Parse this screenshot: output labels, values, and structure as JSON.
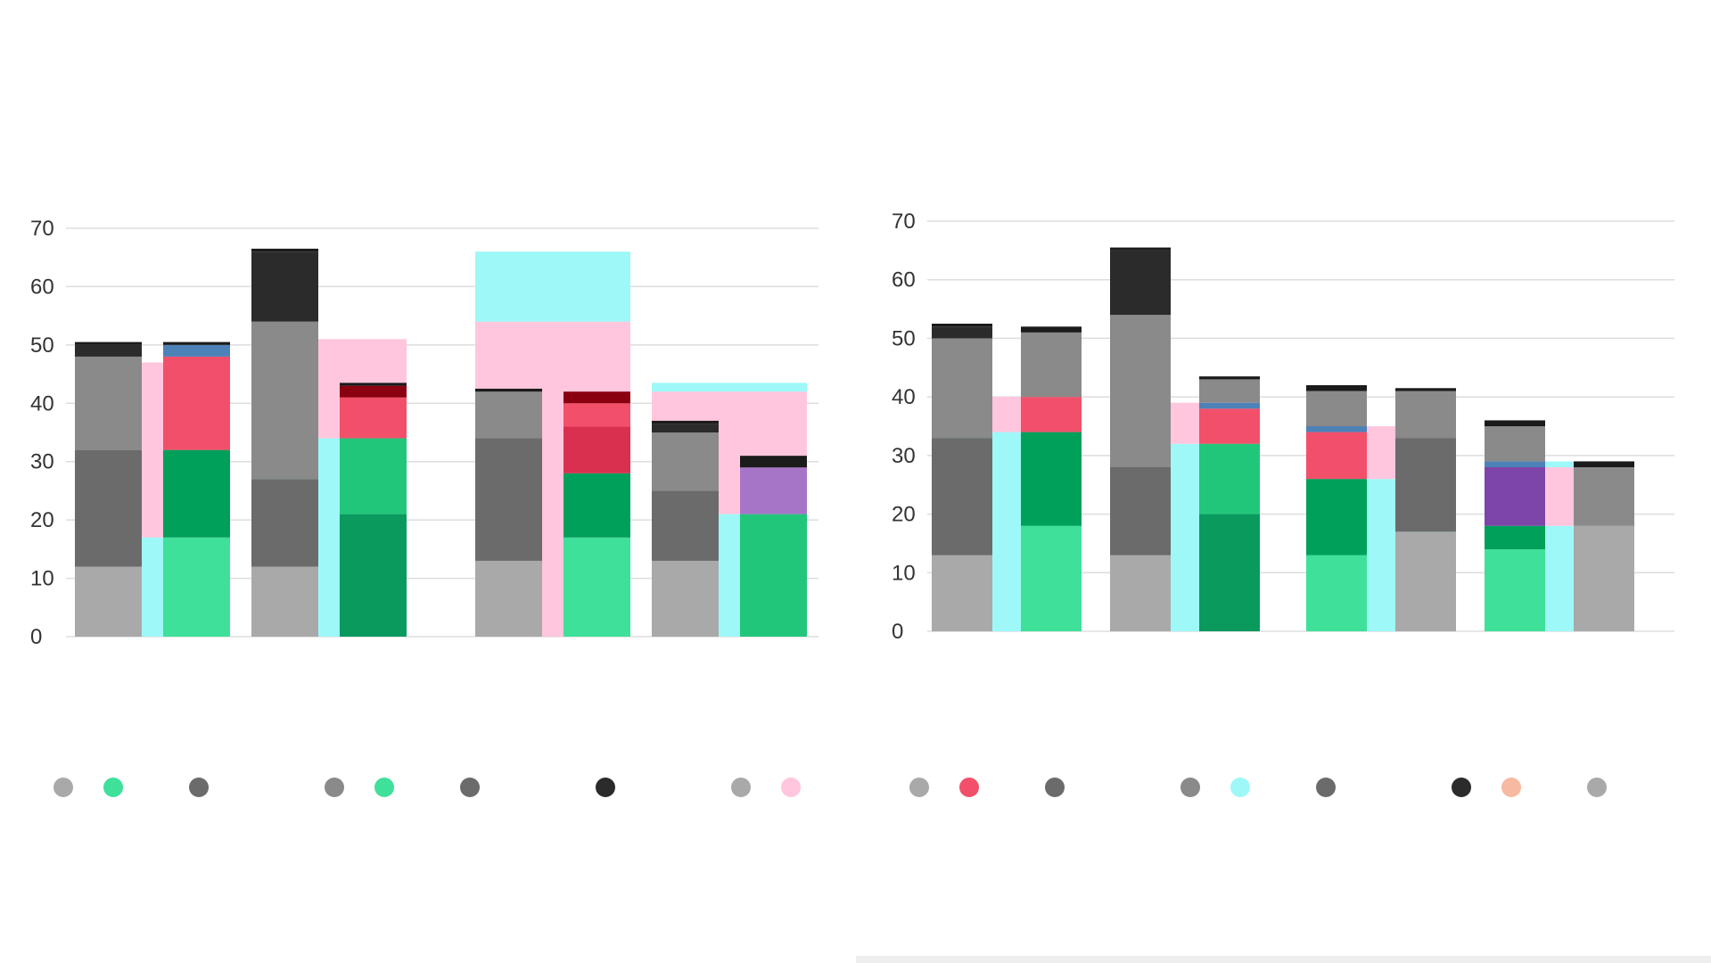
{
  "colors": {
    "c1": "#a9a9a9",
    "c2": "#6b6b6b",
    "c3": "#8a8a8a",
    "c4": "#2b2b2b",
    "green_light": "#3fe09a",
    "green": "#00a05a",
    "green_mid": "#22c67a",
    "green_dark": "#0a9a5e",
    "cyan": "#9ef8f8",
    "pink": "#ffc6de",
    "red": "#f2506a",
    "red_dark": "#d9304f",
    "darkred": "#8b0010",
    "purple": "#a775c8",
    "purple_dark": "#7e45a8",
    "blue": "#4d82b8",
    "nearblack": "#1b1b1b",
    "grid": "#dddddd"
  },
  "chart_data": [
    {
      "type": "bar",
      "stacked": true,
      "title": "",
      "ylim": [
        0,
        70
      ],
      "y_ticks": [
        0,
        10,
        20,
        30,
        40,
        50,
        60,
        70
      ],
      "y_tick_labels": [
        "0",
        "10",
        "20",
        "30",
        "40",
        "50",
        "60",
        "70"
      ],
      "grid": true,
      "groups": [
        {
          "label": "",
          "bars": [
            {
              "label": "",
              "segments": [
                {
                  "value": 12,
                  "color": "c1"
                },
                {
                  "value": 20,
                  "color": "c2"
                },
                {
                  "value": 16,
                  "color": "c3"
                },
                {
                  "value": 2,
                  "color": "c4"
                },
                {
                  "value": 0.5,
                  "color": "nearblack"
                }
              ]
            },
            {
              "label": "",
              "segments": [
                {
                  "value": 17,
                  "color": "green_light"
                },
                {
                  "value": 15,
                  "color": "green"
                },
                {
                  "value": 16,
                  "color": "red"
                },
                {
                  "value": 2,
                  "color": "blue"
                },
                {
                  "value": 0.5,
                  "color": "nearblack"
                }
              ]
            },
            {
              "label": "",
              "segments": [
                {
                  "value": 12,
                  "color": "c1"
                },
                {
                  "value": 15,
                  "color": "c2"
                },
                {
                  "value": 27,
                  "color": "c3"
                },
                {
                  "value": 12,
                  "color": "c4"
                },
                {
                  "value": 0.5,
                  "color": "nearblack"
                }
              ]
            },
            {
              "label": "",
              "segments": [
                {
                  "value": 21,
                  "color": "green_dark"
                },
                {
                  "value": 13,
                  "color": "green_mid"
                },
                {
                  "value": 7,
                  "color": "red"
                },
                {
                  "value": 2,
                  "color": "darkred"
                },
                {
                  "value": 0.5,
                  "color": "nearblack"
                }
              ]
            }
          ]
        },
        {
          "label": "",
          "bars": [
            {
              "label": "",
              "segments": [
                {
                  "value": 13,
                  "color": "c1"
                },
                {
                  "value": 21,
                  "color": "c2"
                },
                {
                  "value": 8,
                  "color": "c3"
                },
                {
                  "value": 0.5,
                  "color": "nearblack"
                }
              ]
            },
            {
              "label": "",
              "segments": [
                {
                  "value": 17,
                  "color": "green_light"
                },
                {
                  "value": 11,
                  "color": "green"
                },
                {
                  "value": 8,
                  "color": "red_dark"
                },
                {
                  "value": 4,
                  "color": "red"
                },
                {
                  "value": 2,
                  "color": "darkred"
                }
              ]
            },
            {
              "label": "",
              "segments": [
                {
                  "value": 13,
                  "color": "c1"
                },
                {
                  "value": 12,
                  "color": "c2"
                },
                {
                  "value": 10,
                  "color": "c3"
                },
                {
                  "value": 1.5,
                  "color": "c4"
                },
                {
                  "value": 0.5,
                  "color": "nearblack"
                }
              ]
            },
            {
              "label": "",
              "segments": [
                {
                  "value": 21,
                  "color": "green_mid"
                },
                {
                  "value": 8,
                  "color": "purple"
                },
                {
                  "value": 2,
                  "color": "nearblack"
                }
              ]
            }
          ]
        }
      ],
      "backgrounds": [
        {
          "group": 0,
          "span": [
            0,
            1
          ],
          "segments": [
            {
              "value": 17,
              "color": "cyan"
            },
            {
              "value": 30,
              "color": "pink"
            }
          ]
        },
        {
          "group": 0,
          "span": [
            2,
            3
          ],
          "segments": [
            {
              "value": 34,
              "color": "cyan"
            },
            {
              "value": 17,
              "color": "pink"
            }
          ]
        },
        {
          "group": 1,
          "span": [
            0,
            1
          ],
          "segments": [
            {
              "value": 54,
              "color": "pink"
            },
            {
              "value": 12,
              "color": "cyan"
            }
          ]
        },
        {
          "group": 1,
          "span": [
            2,
            3
          ],
          "segments": [
            {
              "value": 21,
              "color": "cyan"
            },
            {
              "value": 21,
              "color": "pink"
            },
            {
              "value": 1.5,
              "color": "cyan"
            }
          ]
        }
      ]
    },
    {
      "type": "bar",
      "stacked": true,
      "title": "",
      "ylim": [
        0,
        70
      ],
      "y_ticks": [
        0,
        10,
        20,
        30,
        40,
        50,
        60,
        70
      ],
      "y_tick_labels": [
        "0",
        "10",
        "20",
        "30",
        "40",
        "50",
        "60",
        "70"
      ],
      "grid": true,
      "groups": [
        {
          "label": "",
          "bars": [
            {
              "label": "",
              "segments": [
                {
                  "value": 13,
                  "color": "c1"
                },
                {
                  "value": 20,
                  "color": "c2"
                },
                {
                  "value": 17,
                  "color": "c3"
                },
                {
                  "value": 2,
                  "color": "c4"
                },
                {
                  "value": 0.5,
                  "color": "nearblack"
                }
              ]
            },
            {
              "label": "",
              "segments": [
                {
                  "value": 18,
                  "color": "green_light"
                },
                {
                  "value": 16,
                  "color": "green"
                },
                {
                  "value": 6,
                  "color": "red"
                },
                {
                  "value": 11,
                  "color": "c3"
                },
                {
                  "value": 1,
                  "color": "nearblack"
                }
              ]
            },
            {
              "label": "",
              "segments": [
                {
                  "value": 13,
                  "color": "c1"
                },
                {
                  "value": 15,
                  "color": "c2"
                },
                {
                  "value": 26,
                  "color": "c3"
                },
                {
                  "value": 11,
                  "color": "c4"
                },
                {
                  "value": 0.5,
                  "color": "nearblack"
                }
              ]
            },
            {
              "label": "",
              "segments": [
                {
                  "value": 20,
                  "color": "green_dark"
                },
                {
                  "value": 12,
                  "color": "green_mid"
                },
                {
                  "value": 6,
                  "color": "red"
                },
                {
                  "value": 1,
                  "color": "blue"
                },
                {
                  "value": 4,
                  "color": "c3"
                },
                {
                  "value": 0.5,
                  "color": "nearblack"
                }
              ]
            }
          ]
        },
        {
          "label": "",
          "bars": [
            {
              "label": "",
              "segments": [
                {
                  "value": 13,
                  "color": "green_light"
                },
                {
                  "value": 13,
                  "color": "green"
                },
                {
                  "value": 8,
                  "color": "red"
                },
                {
                  "value": 1,
                  "color": "blue"
                },
                {
                  "value": 6,
                  "color": "c3"
                },
                {
                  "value": 1,
                  "color": "nearblack"
                }
              ]
            },
            {
              "label": "",
              "segments": [
                {
                  "value": 17,
                  "color": "c1"
                },
                {
                  "value": 16,
                  "color": "c2"
                },
                {
                  "value": 8,
                  "color": "c3"
                },
                {
                  "value": 0.5,
                  "color": "nearblack"
                }
              ]
            },
            {
              "label": "",
              "segments": [
                {
                  "value": 14,
                  "color": "green_light"
                },
                {
                  "value": 4,
                  "color": "green"
                },
                {
                  "value": 10,
                  "color": "purple_dark"
                },
                {
                  "value": 1,
                  "color": "blue"
                },
                {
                  "value": 6,
                  "color": "c3"
                },
                {
                  "value": 1,
                  "color": "nearblack"
                }
              ]
            },
            {
              "label": "",
              "segments": [
                {
                  "value": 18,
                  "color": "c1"
                },
                {
                  "value": 10,
                  "color": "c3"
                },
                {
                  "value": 1,
                  "color": "nearblack"
                }
              ]
            }
          ]
        }
      ],
      "backgrounds": [
        {
          "group": 0,
          "span": [
            0,
            1
          ],
          "segments": [
            {
              "value": 34,
              "color": "cyan"
            },
            {
              "value": 6,
              "color": "pink"
            }
          ]
        },
        {
          "group": 0,
          "span": [
            2,
            3
          ],
          "segments": [
            {
              "value": 32,
              "color": "cyan"
            },
            {
              "value": 7,
              "color": "pink"
            }
          ]
        },
        {
          "group": 1,
          "span": [
            0,
            1
          ],
          "segments": [
            {
              "value": 26,
              "color": "cyan"
            },
            {
              "value": 9,
              "color": "pink"
            }
          ]
        },
        {
          "group": 1,
          "span": [
            2,
            3
          ],
          "segments": [
            {
              "value": 18,
              "color": "cyan"
            },
            {
              "value": 10,
              "color": "pink"
            },
            {
              "value": 1,
              "color": "cyan"
            }
          ]
        }
      ]
    }
  ],
  "legend_left": [
    {
      "label": "",
      "color": "#a9a9a9",
      "dot": "#3fe09a"
    },
    {
      "label": "",
      "color": "#6b6b6b",
      "dot": ""
    },
    {
      "label": "",
      "color": "#8a8a8a",
      "dot": "#3fe09a"
    },
    {
      "label": "",
      "color": "#6b6b6b",
      "dot": ""
    },
    {
      "label": "",
      "color": "#2b2b2b",
      "dot": ""
    },
    {
      "label": "",
      "color": "#a9a9a9",
      "dot": "#ffc6de"
    }
  ],
  "legend_right": [
    {
      "label": "",
      "color": "#a9a9a9",
      "dot": "#f2506a"
    },
    {
      "label": "",
      "color": "#6b6b6b",
      "dot": ""
    },
    {
      "label": "",
      "color": "#8a8a8a",
      "dot": "#9ef8f8"
    },
    {
      "label": "",
      "color": "#6b6b6b",
      "dot": ""
    },
    {
      "label": "",
      "color": "#2b2b2b",
      "dot": "#f7b9a0"
    },
    {
      "label": "",
      "color": "#a9a9a9",
      "dot": ""
    }
  ],
  "source_left": [
    "",
    ""
  ],
  "source_right": [
    "",
    ""
  ]
}
